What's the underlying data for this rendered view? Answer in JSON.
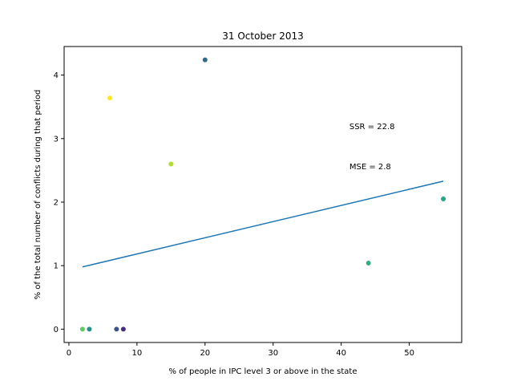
{
  "chart_data": {
    "type": "scatter",
    "title": "31 October 2013",
    "xlabel": "% of people in IPC level 3 or above in the state",
    "ylabel": "% of the total number of conflicts during that period",
    "xlim": [
      -0.7,
      57.7
    ],
    "ylim": [
      -0.21,
      4.45
    ],
    "xticks": [
      0,
      10,
      20,
      30,
      40,
      50
    ],
    "yticks": [
      0,
      1,
      2,
      3,
      4
    ],
    "grid": false,
    "points": [
      {
        "x": 2,
        "y": 0.0,
        "color": "#5ec962"
      },
      {
        "x": 3,
        "y": 0.0,
        "color": "#21918c"
      },
      {
        "x": 6,
        "y": 3.64,
        "color": "#fde725"
      },
      {
        "x": 7,
        "y": 0.0,
        "color": "#3b528b"
      },
      {
        "x": 8,
        "y": 0.0,
        "color": "#472d7b"
      },
      {
        "x": 15,
        "y": 2.6,
        "color": "#b5de2b"
      },
      {
        "x": 20,
        "y": 4.24,
        "color": "#31688e"
      },
      {
        "x": 44,
        "y": 1.04,
        "color": "#2cb17e"
      },
      {
        "x": 55,
        "y": 2.05,
        "color": "#22a884"
      }
    ],
    "fit_line": {
      "x": [
        2,
        55
      ],
      "y": [
        0.98,
        2.33
      ],
      "color": "#1f77b4"
    },
    "annotations": [
      {
        "text": "SSR = 22.8",
        "x": 41.2,
        "y": 3.2
      },
      {
        "text": "MSE = 2.8",
        "x": 41.2,
        "y": 2.57
      }
    ]
  }
}
